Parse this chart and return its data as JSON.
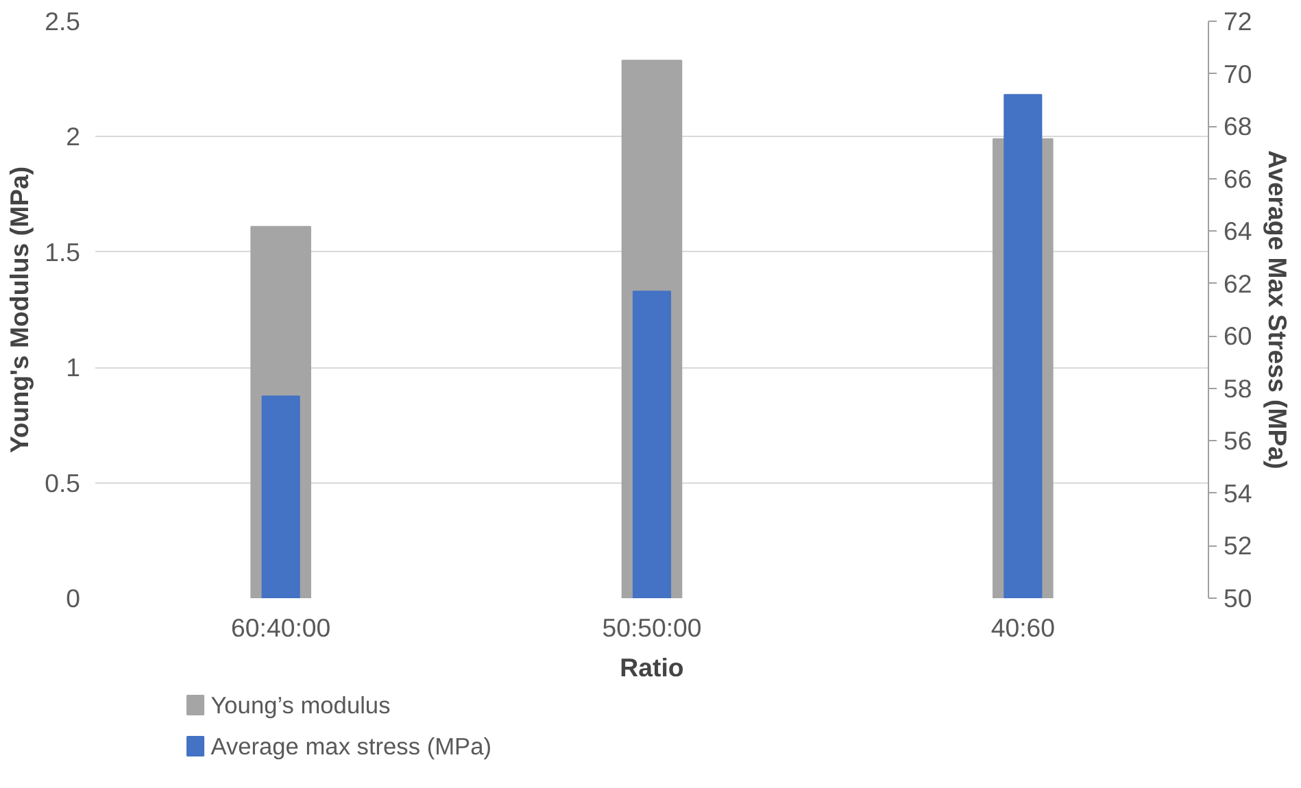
{
  "chart_data": {
    "type": "bar",
    "xlabel": "Ratio",
    "ylabel": "Young's Modulus (MPa)",
    "y2label": "Average Max Stress (MPa)",
    "categories": [
      "60:40:00",
      "50:50:00",
      "40:60"
    ],
    "series": [
      {
        "name": "Young’s modulus",
        "color": "#a5a5a5",
        "values": [
          1.61,
          2.33,
          1.99
        ]
      },
      {
        "name": "Average max stress (MPa)",
        "color": "#4472c4",
        "values": [
          57.7,
          61.7,
          69.2
        ],
        "axis": "y2"
      }
    ],
    "ylim": [
      0,
      2.5
    ],
    "yticks": [
      0,
      0.5,
      1,
      1.5,
      2,
      2.5
    ],
    "y2lim": [
      50,
      72
    ],
    "y2ticks": [
      50,
      52,
      54,
      56,
      58,
      60,
      62,
      64,
      66,
      68,
      70,
      72
    ],
    "grid": "y",
    "legend": "bottom left"
  }
}
